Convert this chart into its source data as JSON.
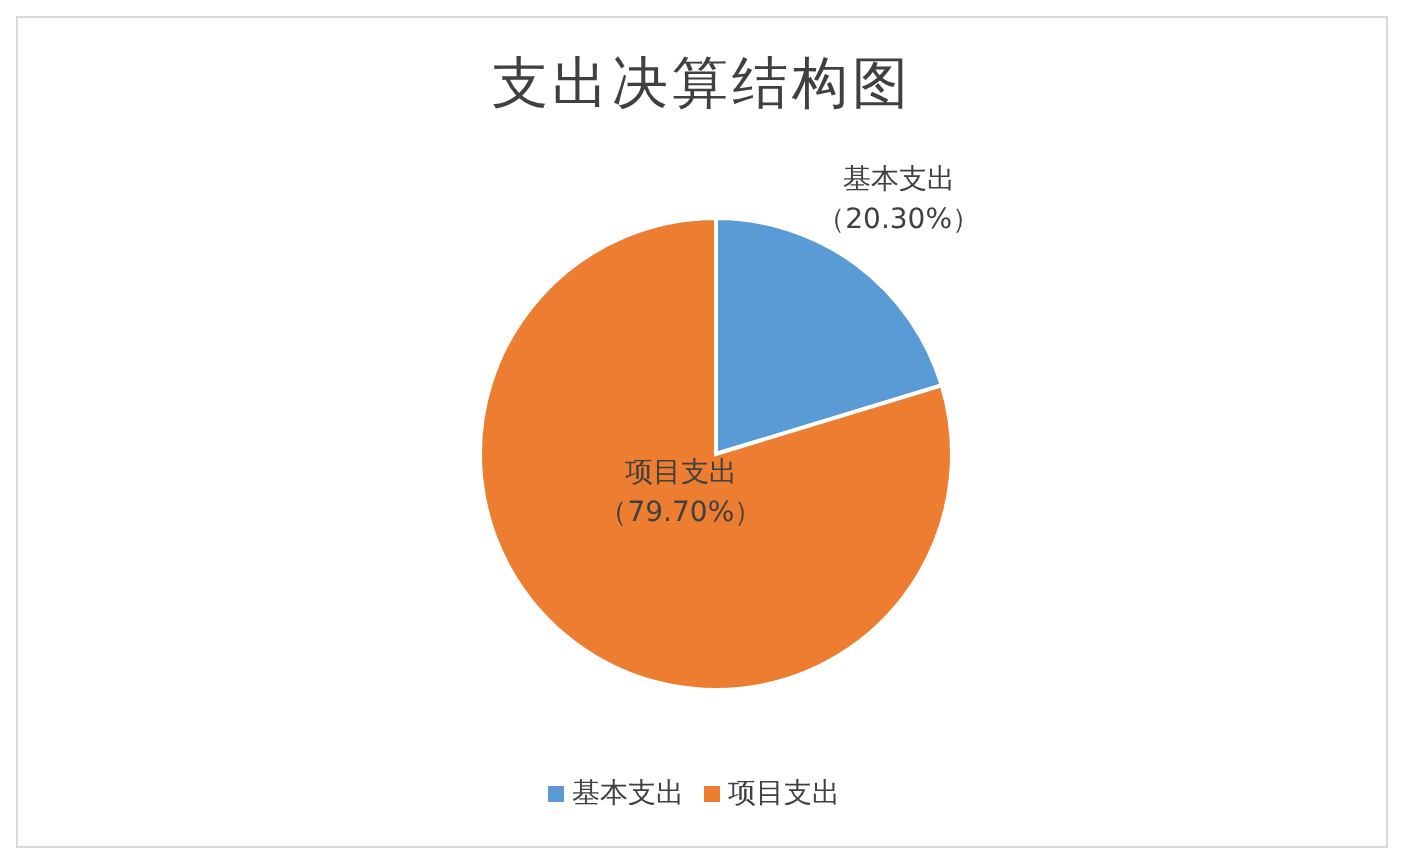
{
  "chart_data": {
    "type": "pie",
    "title": "支出决算结构图",
    "categories": [
      "基本支出",
      "项目支出"
    ],
    "values": [
      20.3,
      79.7
    ],
    "colors": [
      "#5b9bd5",
      "#ed7d31"
    ],
    "value_labels": [
      "（20.30%）",
      "（79.70%）"
    ],
    "legend": "bottom"
  }
}
